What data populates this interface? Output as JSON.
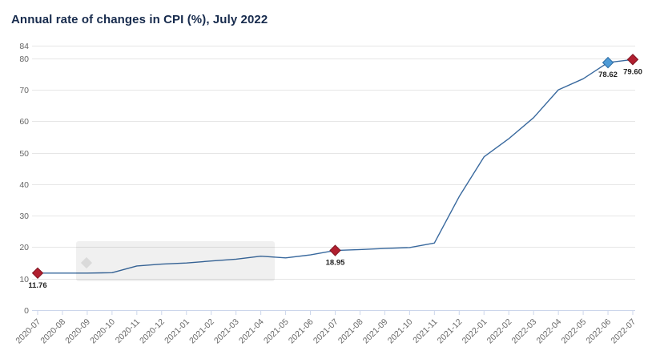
{
  "title": "Annual rate of changes in CPI (%), July 2022",
  "chart_data": {
    "type": "line",
    "title": "Annual rate of changes in CPI (%), July 2022",
    "categories": [
      "2020-07",
      "2020-08",
      "2020-09",
      "2020-10",
      "2020-11",
      "2020-12",
      "2021-01",
      "2021-02",
      "2021-03",
      "2021-04",
      "2021-05",
      "2021-06",
      "2021-07",
      "2021-08",
      "2021-09",
      "2021-10",
      "2021-11",
      "2021-12",
      "2022-01",
      "2022-02",
      "2022-03",
      "2022-04",
      "2022-05",
      "2022-06",
      "2022-07"
    ],
    "values": [
      11.76,
      11.77,
      11.75,
      11.89,
      14.03,
      14.6,
      14.97,
      15.61,
      16.19,
      17.14,
      16.59,
      17.53,
      18.95,
      19.25,
      19.58,
      19.89,
      21.31,
      36.08,
      48.69,
      54.44,
      61.14,
      69.97,
      73.5,
      78.62,
      79.6
    ],
    "xlabel": "",
    "ylabel": "",
    "ylim": [
      0,
      84
    ],
    "yticks": [
      0,
      10,
      20,
      30,
      40,
      50,
      60,
      70,
      80,
      84
    ],
    "grid": true,
    "legend": false,
    "line_color": "#39699e",
    "gridline_color": "#e6e6e6",
    "axis_line_color": "#ccd6eb",
    "tick_label_color": "#666666",
    "data_label_color": "#222222",
    "highlight_markers": [
      {
        "category": "2020-07",
        "value": 11.76,
        "label": "11.76",
        "fill": "#b11f2f",
        "stroke": "#7d1421"
      },
      {
        "category": "2021-07",
        "value": 18.95,
        "label": "18.95",
        "fill": "#b11f2f",
        "stroke": "#7d1421"
      },
      {
        "category": "2022-06",
        "value": 78.62,
        "label": "78.62",
        "fill": "#4e9bd7",
        "stroke": "#2d6ca3"
      },
      {
        "category": "2022-07",
        "value": 79.6,
        "label": "79.60",
        "fill": "#b11f2f",
        "stroke": "#7d1421"
      }
    ]
  }
}
